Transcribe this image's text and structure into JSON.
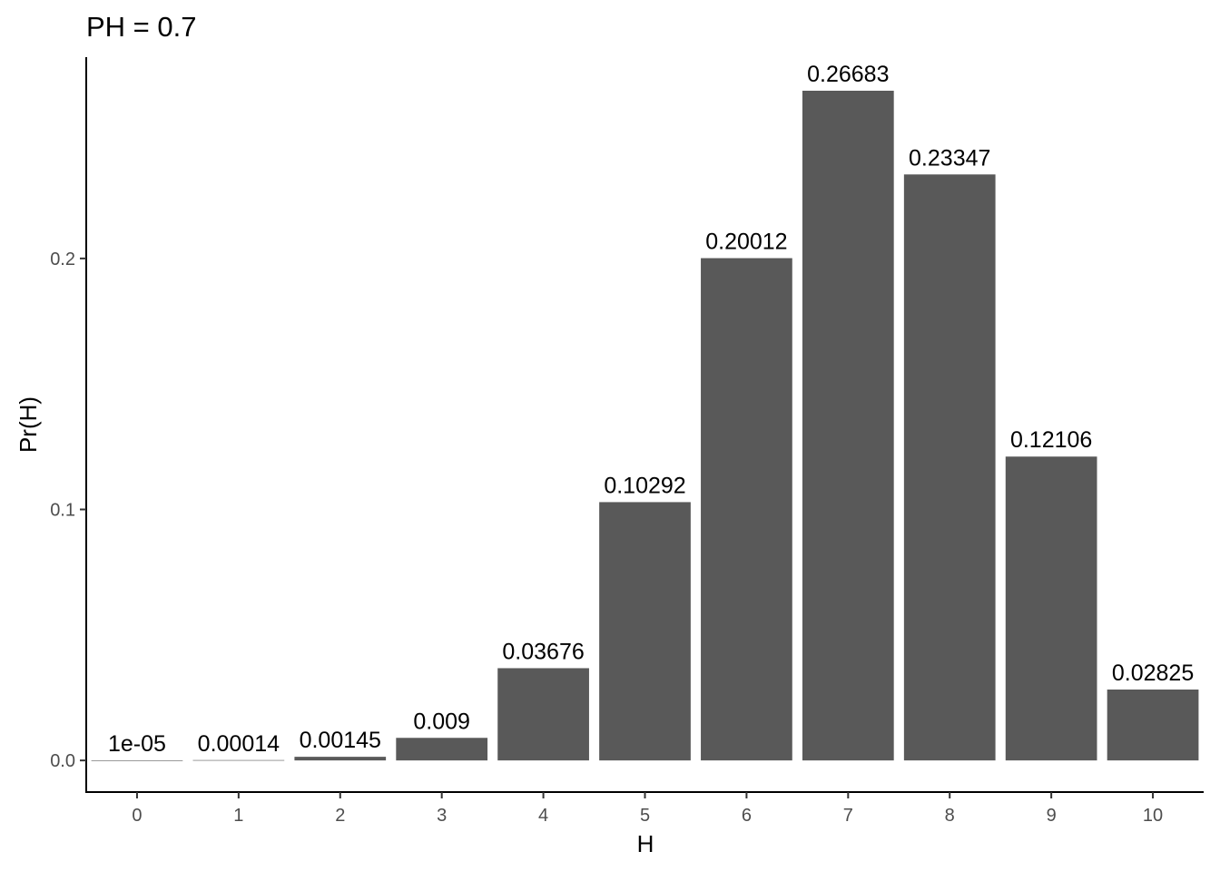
{
  "chart_data": {
    "type": "bar",
    "title": "PH = 0.7",
    "xlabel": "H",
    "ylabel": "Pr(H)",
    "categories": [
      "0",
      "1",
      "2",
      "3",
      "4",
      "5",
      "6",
      "7",
      "8",
      "9",
      "10"
    ],
    "values": [
      1e-05,
      0.00014,
      0.00145,
      0.009,
      0.03676,
      0.10292,
      0.20012,
      0.26683,
      0.23347,
      0.12106,
      0.02825
    ],
    "data_labels": [
      "1e-05",
      "0.00014",
      "0.00145",
      "0.009",
      "0.03676",
      "0.10292",
      "0.20012",
      "0.26683",
      "0.23347",
      "0.12106",
      "0.02825"
    ],
    "y_ticks": [
      0.0,
      0.1,
      0.2
    ],
    "y_tick_labels": [
      "0.0",
      "0.1",
      "0.2"
    ],
    "ylim": [
      -0.0126,
      0.2802
    ],
    "grid": false,
    "legend": "none",
    "bar_color": "#595959"
  }
}
